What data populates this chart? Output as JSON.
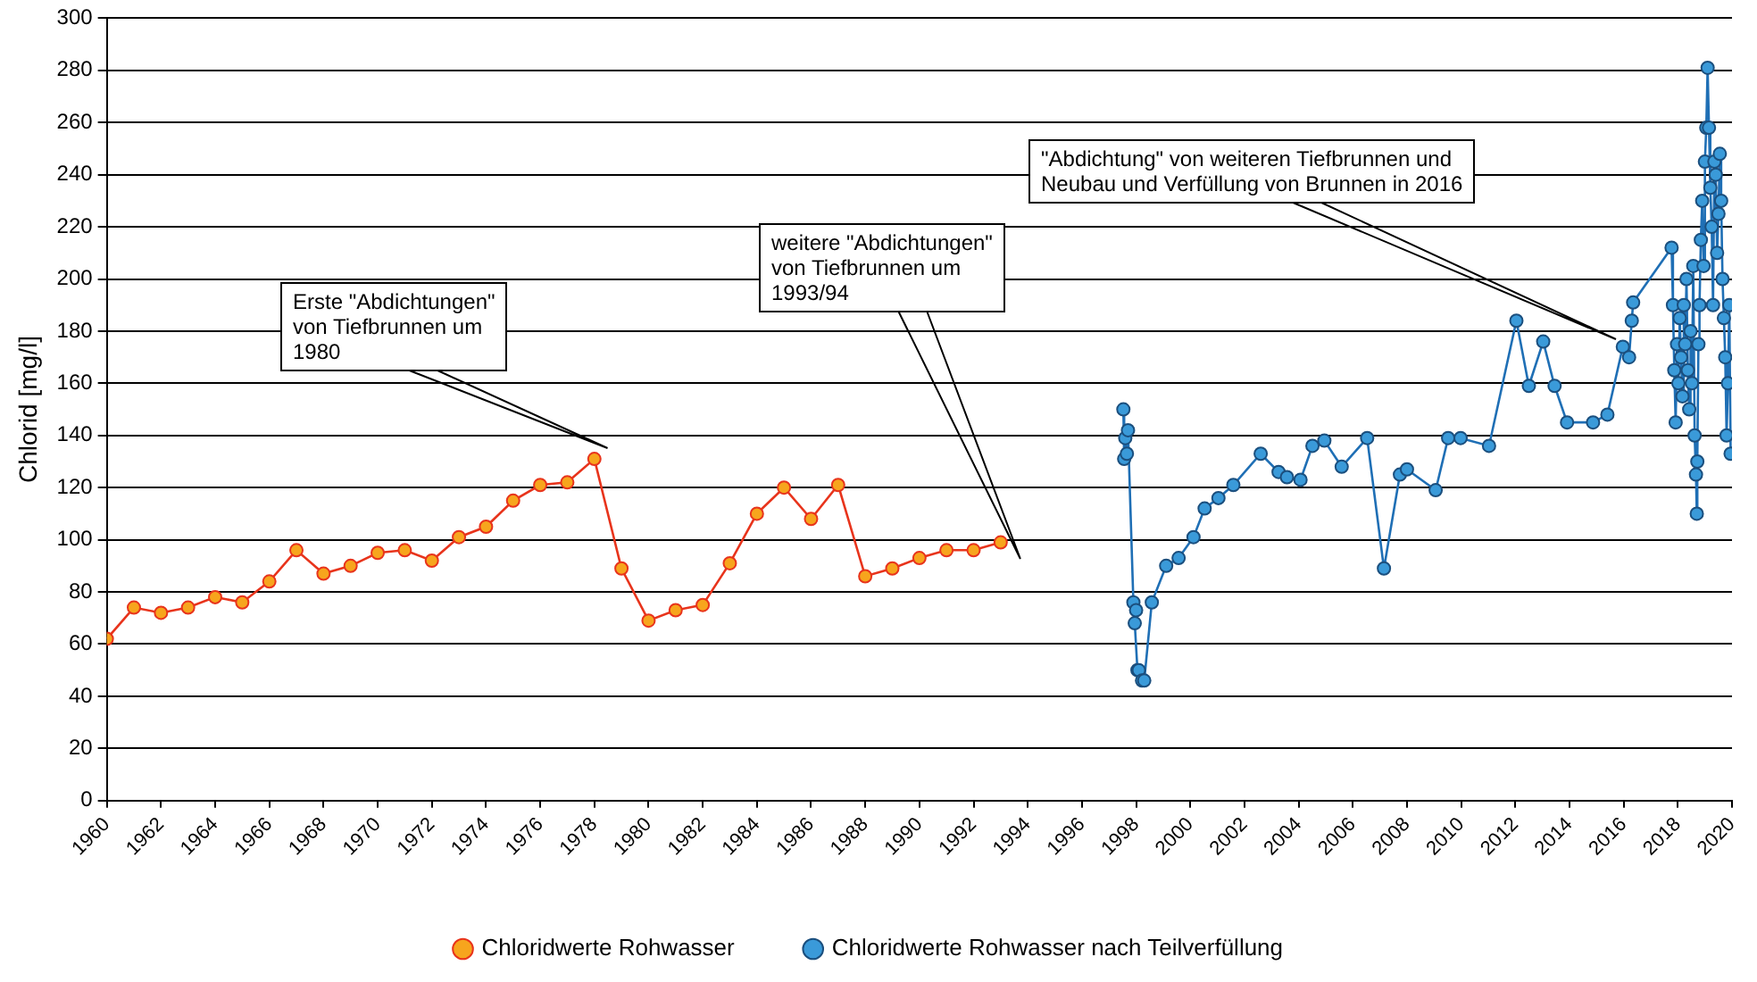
{
  "chart_data": {
    "type": "line",
    "ylabel": "Chlorid [mg/l]",
    "xlim": [
      1960,
      2020
    ],
    "xticks": [
      1960,
      1962,
      1964,
      1966,
      1968,
      1970,
      1972,
      1974,
      1976,
      1978,
      1980,
      1982,
      1984,
      1986,
      1988,
      1990,
      1992,
      1994,
      1996,
      1998,
      2000,
      2002,
      2004,
      2006,
      2008,
      2010,
      2012,
      2014,
      2016,
      2018,
      2020
    ],
    "ylim": [
      0,
      300
    ],
    "yticks": [
      0,
      20,
      40,
      60,
      80,
      100,
      120,
      140,
      160,
      180,
      200,
      220,
      240,
      260,
      280,
      300
    ],
    "grid": "y",
    "legend": "bottom",
    "marker": "circle",
    "line_style": "solid",
    "series": [
      {
        "name": "Chloridwerte Rohwasser",
        "color": "#e8341c",
        "x": [
          1960,
          1961,
          1962,
          1963,
          1964,
          1965,
          1966,
          1967,
          1968,
          1969,
          1970,
          1971,
          1972,
          1973,
          1974,
          1975,
          1976,
          1977,
          1978,
          1979,
          1980,
          1981,
          1982,
          1983,
          1984,
          1985,
          1986,
          1987,
          1988,
          1989,
          1990,
          1991,
          1992,
          1993
        ],
        "values": [
          62,
          74,
          72,
          74,
          78,
          76,
          84,
          96,
          87,
          90,
          95,
          96,
          92,
          101,
          105,
          115,
          121,
          122,
          131,
          89,
          69,
          73,
          75,
          91,
          110,
          120,
          108,
          121,
          86,
          89,
          93,
          96,
          96,
          99
        ]
      },
      {
        "name": "Chloridwerte Rohwasser nach Teilverfüllung",
        "color": "#1f6fb5",
        "x": [
          1997.53,
          1997.56,
          1997.6,
          1997.66,
          1997.7,
          1997.9,
          1998.0,
          1997.95,
          1998.05,
          1998.1,
          1998.22,
          1998.3,
          1998.58,
          1999.11,
          1999.57,
          2000.12,
          2000.53,
          2001.04,
          2001.59,
          2002.6,
          2003.26,
          2003.57,
          2004.07,
          2004.51,
          2004.95,
          2005.59,
          2006.53,
          2007.15,
          2007.74,
          2008.0,
          2009.06,
          2009.52,
          2009.98,
          2011.03,
          2012.04,
          2012.5,
          2013.03,
          2013.45,
          2013.91,
          2014.87,
          2015.4,
          2015.97,
          2016.2,
          2016.3,
          2016.35,
          2017.77,
          2017.82,
          2017.87,
          2017.92,
          2017.97,
          2018.02,
          2018.07,
          2018.12,
          2018.17,
          2018.22,
          2018.27,
          2018.32,
          2018.37,
          2018.42,
          2018.47,
          2018.52,
          2018.57,
          2018.62,
          2018.67,
          2018.7,
          2018.72,
          2018.76,
          2018.8,
          2018.85,
          2018.9,
          2018.95,
          2019.0,
          2019.05,
          2019.1,
          2019.15,
          2019.2,
          2019.25,
          2019.3,
          2019.35,
          2019.4,
          2019.45,
          2019.5,
          2019.55,
          2019.6,
          2019.65,
          2019.7,
          2019.75,
          2019.8,
          2019.85,
          2019.9,
          2019.95
        ],
        "values": [
          150,
          131,
          139,
          133,
          142,
          76,
          73,
          68,
          50,
          50,
          46,
          46,
          76,
          90,
          93,
          101,
          112,
          116,
          121,
          133,
          126,
          124,
          123,
          136,
          138,
          128,
          139,
          89,
          125,
          127,
          119,
          139,
          139,
          136,
          184,
          159,
          176,
          159,
          145,
          145,
          148,
          174,
          170,
          184,
          191,
          212,
          190,
          165,
          145,
          175,
          160,
          185,
          170,
          155,
          190,
          175,
          200,
          165,
          150,
          180,
          160,
          205,
          140,
          125,
          110,
          130,
          175,
          190,
          215,
          230,
          205,
          245,
          258,
          281,
          258,
          235,
          220,
          190,
          245,
          240,
          210,
          225,
          248,
          230,
          200,
          185,
          170,
          140,
          160,
          190,
          133
        ]
      }
    ],
    "annotations": [
      "Erste \"Abdichtungen\"\nvon Tiefbrunnen um\n1980",
      "weitere \"Abdichtungen\"\nvon Tiefbrunnen um\n1993/94",
      "\"Abdichtung\" von weiteren Tiefbrunnen und\nNeubau und Verfüllung von Brunnen in 2016"
    ]
  }
}
